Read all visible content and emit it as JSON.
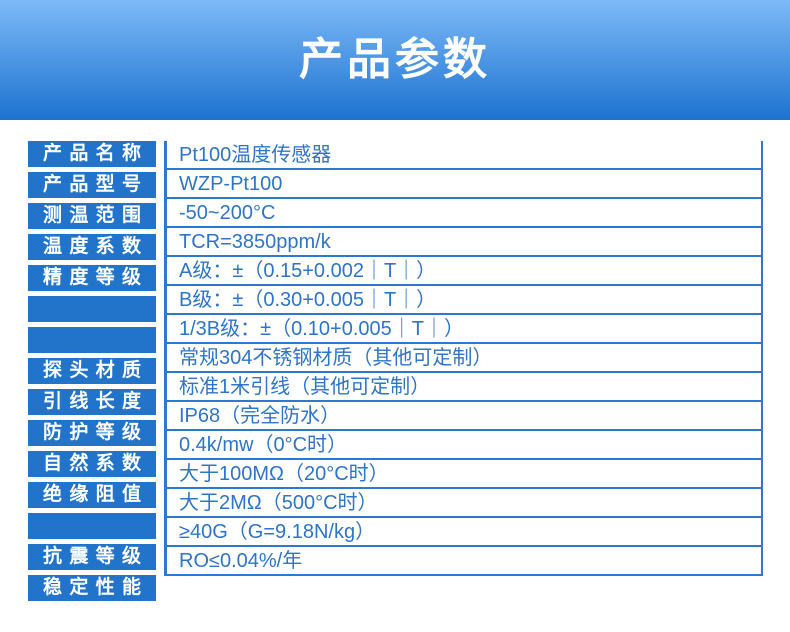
{
  "banner": {
    "title": "产品参数"
  },
  "colors": {
    "banner_gradient_top": "#7db9f7",
    "banner_gradient_bottom": "#1d73d0",
    "banner_text": "#ffffff",
    "label_bg": "#2274ca",
    "label_text": "#ffffff",
    "value_text": "#2e74c8",
    "line": "#2e79cf",
    "page_bg": "#ffffff"
  },
  "table": {
    "rows": [
      {
        "label": "产品名称",
        "value": "Pt100温度传感器"
      },
      {
        "label": "产品型号",
        "value": "WZP-Pt100"
      },
      {
        "label": "测温范围",
        "value": "-50~200°C"
      },
      {
        "label": "温度系数",
        "value": "TCR=3850ppm/k"
      },
      {
        "label": "精度等级",
        "value": "A级：±（0.15+0.002｜T｜）"
      },
      {
        "label": "",
        "value": "B级：±（0.30+0.005｜T｜）"
      },
      {
        "label": "",
        "value": "1/3B级：±（0.10+0.005｜T｜）"
      },
      {
        "label": "探头材质",
        "value": "常规304不锈钢材质（其他可定制）"
      },
      {
        "label": "引线长度",
        "value": "标准1米引线（其他可定制）"
      },
      {
        "label": "防护等级",
        "value": "IP68（完全防水）"
      },
      {
        "label": "自然系数",
        "value": "0.4k/mw（0°C时）"
      },
      {
        "label": "绝缘阻值",
        "value": "大于100MΩ（20°C时）"
      },
      {
        "label": "",
        "value": "大于2MΩ（500°C时）"
      },
      {
        "label": "抗震等级",
        "value": "≥40G（G=9.18N/kg）"
      },
      {
        "label": "稳定性能",
        "value": "RO≤0.04%/年"
      }
    ]
  }
}
